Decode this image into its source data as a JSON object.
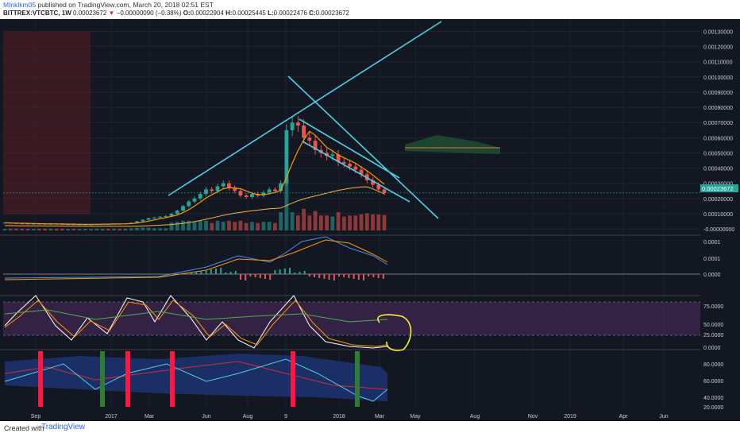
{
  "header": {
    "author": "MInklkm05",
    "published_text": "published on TradingView.com, March 20, 2018 02:51 EST",
    "symbol": "BITTREX:VTCBTC, 1W",
    "last": "0.00023672",
    "change_arrow": "▼",
    "change": "−0.00000090 (−0.38%)",
    "o_label": "O:",
    "o_value": "0.00022904",
    "h_label": "H:",
    "h_value": "0.00025445",
    "l_label": "L:",
    "l_value": "0.00022476",
    "c_label": "C:",
    "c_value": "0.00023672"
  },
  "footer": {
    "created_with": "Created with",
    "brand": "TradingView"
  },
  "colors": {
    "background": "#131722",
    "up": "#26a69a",
    "down": "#ef5350",
    "trendline": "#4dd0e1",
    "annotation": "#ffeb3b"
  },
  "chart_data": {
    "type": "candlestick",
    "symbol": "BITTREX:VTCBTC",
    "interval": "1W",
    "price_axis": [
      "0.00130000",
      "0.00120000",
      "0.00110000",
      "0.00100000",
      "0.00090000",
      "0.00080000",
      "0.00070000",
      "0.00060000",
      "0.00050000",
      "0.00040000",
      "0.00030000",
      "0.00020000",
      "0.00010000",
      "-0.00000000"
    ],
    "price_axis_values": [
      0.0013,
      0.0012,
      0.0011,
      0.001,
      0.0009,
      0.0008,
      0.0007,
      0.0006,
      0.0005,
      0.0004,
      0.0003,
      0.0002,
      0.0001,
      0
    ],
    "ylim": [
      -1e-05,
      0.00136
    ],
    "last_price_label": "0.00023672",
    "last_price_value": 0.00023672,
    "time_axis": [
      "Sep",
      "2017",
      "Mar",
      "Jun",
      "Aug",
      "9",
      "2018",
      "Mar",
      "May",
      "Aug",
      "Nov",
      "2019",
      "Apr",
      "Jun"
    ],
    "close_series_approx": [
      4e-05,
      3.8e-05,
      3.6e-05,
      3.5e-05,
      3.4e-05,
      3.4e-05,
      3.3e-05,
      3.2e-05,
      3.3e-05,
      3.2e-05,
      3.1e-05,
      3.1e-05,
      3e-05,
      3e-05,
      3e-05,
      3e-05,
      3.2e-05,
      3.3e-05,
      3.2e-05,
      3.4e-05,
      3.3e-05,
      3.5e-05,
      4e-05,
      5e-05,
      6e-05,
      7e-05,
      7.5e-05,
      8e-05,
      8.5e-05,
      0.0001,
      0.00012,
      0.00015,
      0.00018,
      0.0002,
      0.00023,
      0.00026,
      0.00025,
      0.00028,
      0.0003,
      0.00027,
      0.00025,
      0.00022,
      0.00021,
      0.00023,
      0.00022,
      0.00024,
      0.00026,
      0.00025,
      0.0003,
      0.00065,
      0.0007,
      0.00068,
      0.0006,
      0.00058,
      0.00052,
      0.0005,
      0.00048,
      0.00049,
      0.00044,
      0.00043,
      0.00041,
      0.00039,
      0.00036,
      0.00032,
      0.00029,
      0.00026,
      0.00023672
    ],
    "indicators": {
      "macd": {
        "axis": [
          "0.0001",
          "0.0001",
          "0.0000"
        ]
      },
      "stoch_rsi": {
        "axis": [
          "75.0000",
          "50.0000",
          "25.0000",
          "0.0000"
        ]
      },
      "oscillator": {
        "axis": [
          "80.0000",
          "60.0000",
          "40.0000",
          "20.0000"
        ]
      }
    }
  }
}
